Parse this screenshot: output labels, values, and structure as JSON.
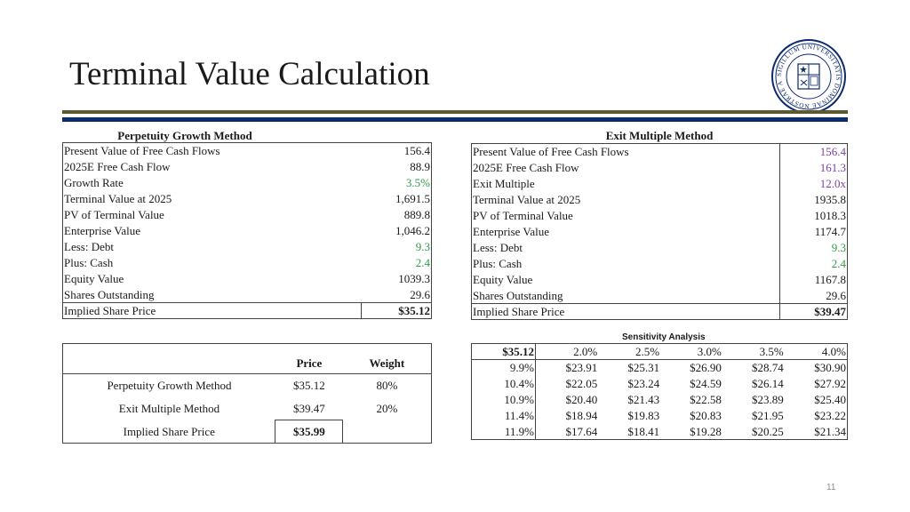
{
  "title": "Terminal Value Calculation",
  "seal": {
    "text": "SIGILLUM UNIVERSITATIS DOMINAE NOSTRAE A LACU"
  },
  "perpetuity": {
    "heading": "Perpetuity Growth Method",
    "rows": [
      {
        "label": "Present Value of Free Cash Flows",
        "value": "156.4"
      },
      {
        "label": "2025E Free Cash Flow",
        "value": "88.9"
      },
      {
        "label": "Growth Rate",
        "value": "3.5%"
      },
      {
        "label": "Terminal Value at 2025",
        "value": "1,691.5"
      },
      {
        "label": "PV of Terminal Value",
        "value": "889.8"
      },
      {
        "label": "Enterprise Value",
        "value": "1,046.2"
      },
      {
        "label": "Less: Debt",
        "value": "9.3"
      },
      {
        "label": "Plus: Cash",
        "value": "2.4"
      },
      {
        "label": "Equity Value",
        "value": "1039.3"
      },
      {
        "label": "Shares Outstanding",
        "value": "29.6"
      },
      {
        "label": "Implied Share Price",
        "value": "$35.12"
      }
    ]
  },
  "exit_multiple": {
    "heading": "Exit Multiple Method",
    "rows": [
      {
        "label": "Present Value of Free Cash Flows",
        "value": "156.4"
      },
      {
        "label": "2025E Free Cash Flow",
        "value": "161.3"
      },
      {
        "label": "Exit Multiple",
        "value": "12.0x"
      },
      {
        "label": "Terminal Value at 2025",
        "value": "1935.8"
      },
      {
        "label": "PV of Terminal Value",
        "value": "1018.3"
      },
      {
        "label": "Enterprise Value",
        "value": "1174.7"
      },
      {
        "label": "Less: Debt",
        "value": "9.3"
      },
      {
        "label": "Plus: Cash",
        "value": "2.4"
      },
      {
        "label": "Equity Value",
        "value": "1167.8"
      },
      {
        "label": "Shares Outstanding",
        "value": "29.6"
      },
      {
        "label": "Implied Share Price",
        "value": "$39.47"
      }
    ]
  },
  "blend": {
    "headers": {
      "price": "Price",
      "weight": "Weight"
    },
    "rows": [
      {
        "label": "Perpetuity Growth Method",
        "price": "$35.12",
        "weight": "80%"
      },
      {
        "label": "Exit Multiple Method",
        "price": "$39.47",
        "weight": "20%"
      }
    ],
    "final": {
      "label": "Implied Share Price",
      "price": "$35.99"
    }
  },
  "sensitivity": {
    "heading": "Sensitivity Analysis",
    "corner": "$35.12",
    "cols": [
      "2.0%",
      "2.5%",
      "3.0%",
      "3.5%",
      "4.0%"
    ],
    "rows": [
      {
        "rate": "9.9%",
        "values": [
          "$23.91",
          "$25.31",
          "$26.90",
          "$28.74",
          "$30.90"
        ]
      },
      {
        "rate": "10.4%",
        "values": [
          "$22.05",
          "$23.24",
          "$24.59",
          "$26.14",
          "$27.92"
        ]
      },
      {
        "rate": "10.9%",
        "values": [
          "$20.40",
          "$21.43",
          "$22.58",
          "$23.89",
          "$25.40"
        ]
      },
      {
        "rate": "11.4%",
        "values": [
          "$18.94",
          "$19.83",
          "$20.83",
          "$21.95",
          "$23.22"
        ]
      },
      {
        "rate": "11.9%",
        "values": [
          "$17.64",
          "$18.41",
          "$19.28",
          "$20.25",
          "$21.34"
        ]
      }
    ]
  },
  "colors": {
    "input_green": "#2e9a44",
    "input_purple": "#7b3fa8",
    "navy": "#0c2a6e",
    "olive": "#5a5a2e"
  },
  "page_number": "11"
}
